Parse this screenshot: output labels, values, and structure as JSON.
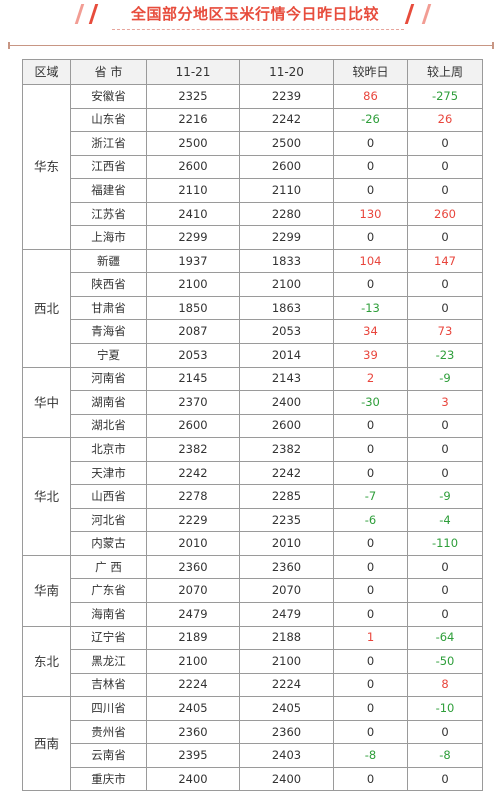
{
  "header": {
    "title": "全国部分地区玉米行情今日昨日比较"
  },
  "table": {
    "columns": [
      "区域",
      "省 市",
      "11-21",
      "11-20",
      "较昨日",
      "较上周"
    ],
    "groups": [
      {
        "region": "华东",
        "rows": [
          {
            "province": "安徽省",
            "d1121": "2325",
            "d1120": "2239",
            "vs_yesterday": "86",
            "vs_last_week": "-275"
          },
          {
            "province": "山东省",
            "d1121": "2216",
            "d1120": "2242",
            "vs_yesterday": "-26",
            "vs_last_week": "26"
          },
          {
            "province": "浙江省",
            "d1121": "2500",
            "d1120": "2500",
            "vs_yesterday": "0",
            "vs_last_week": "0"
          },
          {
            "province": "江西省",
            "d1121": "2600",
            "d1120": "2600",
            "vs_yesterday": "0",
            "vs_last_week": "0"
          },
          {
            "province": "福建省",
            "d1121": "2110",
            "d1120": "2110",
            "vs_yesterday": "0",
            "vs_last_week": "0"
          },
          {
            "province": "江苏省",
            "d1121": "2410",
            "d1120": "2280",
            "vs_yesterday": "130",
            "vs_last_week": "260"
          },
          {
            "province": "上海市",
            "d1121": "2299",
            "d1120": "2299",
            "vs_yesterday": "0",
            "vs_last_week": "0"
          }
        ]
      },
      {
        "region": "西北",
        "rows": [
          {
            "province": "新疆",
            "d1121": "1937",
            "d1120": "1833",
            "vs_yesterday": "104",
            "vs_last_week": "147"
          },
          {
            "province": "陕西省",
            "d1121": "2100",
            "d1120": "2100",
            "vs_yesterday": "0",
            "vs_last_week": "0"
          },
          {
            "province": "甘肃省",
            "d1121": "1850",
            "d1120": "1863",
            "vs_yesterday": "-13",
            "vs_last_week": "0"
          },
          {
            "province": "青海省",
            "d1121": "2087",
            "d1120": "2053",
            "vs_yesterday": "34",
            "vs_last_week": "73"
          },
          {
            "province": "宁夏",
            "d1121": "2053",
            "d1120": "2014",
            "vs_yesterday": "39",
            "vs_last_week": "-23"
          }
        ]
      },
      {
        "region": "华中",
        "rows": [
          {
            "province": "河南省",
            "d1121": "2145",
            "d1120": "2143",
            "vs_yesterday": "2",
            "vs_last_week": "-9"
          },
          {
            "province": "湖南省",
            "d1121": "2370",
            "d1120": "2400",
            "vs_yesterday": "-30",
            "vs_last_week": "3"
          },
          {
            "province": "湖北省",
            "d1121": "2600",
            "d1120": "2600",
            "vs_yesterday": "0",
            "vs_last_week": "0"
          }
        ]
      },
      {
        "region": "华北",
        "rows": [
          {
            "province": "北京市",
            "d1121": "2382",
            "d1120": "2382",
            "vs_yesterday": "0",
            "vs_last_week": "0"
          },
          {
            "province": "天津市",
            "d1121": "2242",
            "d1120": "2242",
            "vs_yesterday": "0",
            "vs_last_week": "0"
          },
          {
            "province": "山西省",
            "d1121": "2278",
            "d1120": "2285",
            "vs_yesterday": "-7",
            "vs_last_week": "-9"
          },
          {
            "province": "河北省",
            "d1121": "2229",
            "d1120": "2235",
            "vs_yesterday": "-6",
            "vs_last_week": "-4"
          },
          {
            "province": "内蒙古",
            "d1121": "2010",
            "d1120": "2010",
            "vs_yesterday": "0",
            "vs_last_week": "-110"
          }
        ]
      },
      {
        "region": "华南",
        "rows": [
          {
            "province": "广 西",
            "d1121": "2360",
            "d1120": "2360",
            "vs_yesterday": "0",
            "vs_last_week": "0"
          },
          {
            "province": "广东省",
            "d1121": "2070",
            "d1120": "2070",
            "vs_yesterday": "0",
            "vs_last_week": "0"
          },
          {
            "province": "海南省",
            "d1121": "2479",
            "d1120": "2479",
            "vs_yesterday": "0",
            "vs_last_week": "0"
          }
        ]
      },
      {
        "region": "东北",
        "rows": [
          {
            "province": "辽宁省",
            "d1121": "2189",
            "d1120": "2188",
            "vs_yesterday": "1",
            "vs_last_week": "-64"
          },
          {
            "province": "黑龙江",
            "d1121": "2100",
            "d1120": "2100",
            "vs_yesterday": "0",
            "vs_last_week": "-50"
          },
          {
            "province": "吉林省",
            "d1121": "2224",
            "d1120": "2224",
            "vs_yesterday": "0",
            "vs_last_week": "8"
          }
        ]
      },
      {
        "region": "西南",
        "rows": [
          {
            "province": "四川省",
            "d1121": "2405",
            "d1120": "2405",
            "vs_yesterday": "0",
            "vs_last_week": "-10"
          },
          {
            "province": "贵州省",
            "d1121": "2360",
            "d1120": "2360",
            "vs_yesterday": "0",
            "vs_last_week": "0"
          },
          {
            "province": "云南省",
            "d1121": "2395",
            "d1120": "2403",
            "vs_yesterday": "-8",
            "vs_last_week": "-8"
          },
          {
            "province": "重庆市",
            "d1121": "2400",
            "d1120": "2400",
            "vs_yesterday": "0",
            "vs_last_week": "0"
          }
        ]
      }
    ]
  },
  "colors": {
    "title": "#e74c3c",
    "positive": "#e8453c",
    "negative": "#2e9e3a",
    "neutral": "#333333",
    "header_bg": "#f2f2f2",
    "border": "#9a9a9a"
  }
}
